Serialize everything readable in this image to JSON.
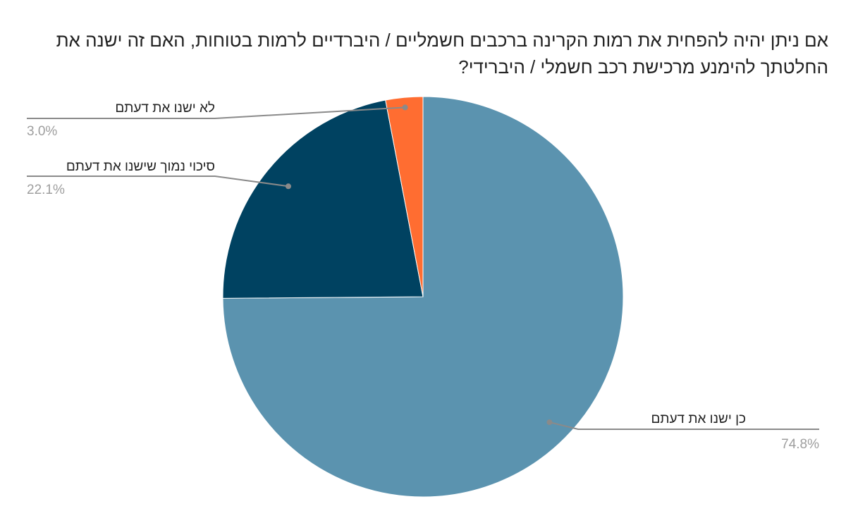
{
  "chart_data": {
    "type": "pie",
    "title": "אם ניתן יהיה להפחית את רמות הקרינה ברכבים חשמליים / היברדיים לרמות בטוחות, האם זה ישנה את החלטתך להימנע מרכישת רכב חשמלי / היברידי?",
    "legend": "none",
    "slices": [
      {
        "label": "כן ישנו את דעתם",
        "value": 74.8,
        "display": "74.8%",
        "color": "#5b93af"
      },
      {
        "label": "סיכוי נמוך שישנו את דעתם",
        "value": 22.1,
        "display": "22.1%",
        "color": "#004261"
      },
      {
        "label": "לא ישנו את דעתם",
        "value": 3.0,
        "display": "3.0%",
        "color": "#ff6d31"
      }
    ]
  }
}
